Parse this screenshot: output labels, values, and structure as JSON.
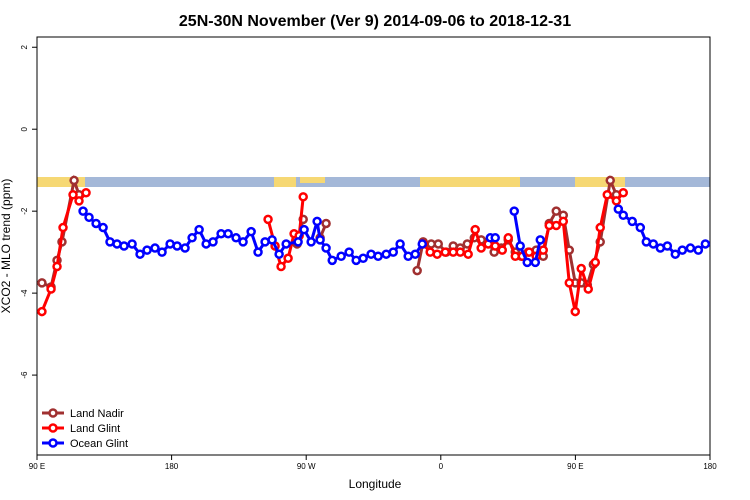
{
  "chart_data": {
    "type": "line",
    "title": "25N-30N November (Ver 9)   2014-09-06 to 2018-12-31",
    "x_label": "Longitude",
    "y_label": "XCO2 - MLO trend (ppm)",
    "xlim": [
      90,
      540
    ],
    "ylim": [
      -7.95,
      2.25
    ],
    "xticks": [
      {
        "value": 90,
        "label": "90 E"
      },
      180,
      {
        "value": 270,
        "label": "90 W"
      },
      {
        "value": 360,
        "label": "0"
      },
      {
        "value": 450,
        "label": "90 E"
      },
      {
        "value": 540,
        "label": "180"
      }
    ],
    "yticks": [
      -6,
      -4,
      -2,
      0,
      2
    ],
    "legend": "bottom-left",
    "series": [
      {
        "name": "Land Nadir",
        "color": "#a03030",
        "x": [
          93.3,
          99.4,
          103.4,
          106.7,
          114.8,
          118.1,
          null,
          263.9,
          268,
          null,
          279.3,
          283.3,
          null,
          344.2,
          348.2,
          353.6,
          358.3,
          363.6,
          368.3,
          373,
          377.7,
          382.4,
          387,
          391.7,
          395.7,
          400.4,
          405.1,
          409.8,
          413.8,
          418.5,
          423.8,
          428.5,
          432.5,
          437.2,
          441.9,
          445.9,
          449.9,
          453.9,
          458,
          462,
          466.6,
          473.3,
          477.4
        ],
        "values": [
          -3.75,
          -3.85,
          -3.2,
          -2.75,
          -1.25,
          -1.6,
          null,
          -2.8,
          -2.2,
          null,
          -2.65,
          -2.3,
          null,
          -3.45,
          -2.75,
          -2.8,
          -2.8,
          -3.0,
          -2.85,
          -2.9,
          -2.8,
          -2.65,
          -2.7,
          -2.75,
          -3.0,
          -2.9,
          -2.7,
          -3.0,
          -3.1,
          -3.0,
          -2.95,
          -3.1,
          -2.3,
          -2.0,
          -2.1,
          -2.95,
          -3.75,
          -3.75,
          -3.8,
          -3.3,
          -2.75,
          -1.25,
          -1.6
        ]
      },
      {
        "name": "Land Glint",
        "color": "#ff0000",
        "x": [
          93.3,
          99.4,
          103.4,
          107.4,
          114.1,
          118.1,
          122.8,
          null,
          244.5,
          249.2,
          253.2,
          257.9,
          261.9,
          265.3,
          268,
          null,
          348.2,
          352.9,
          357.6,
          363,
          368.3,
          373,
          378.3,
          383,
          387,
          391.7,
          396.4,
          401.1,
          405.1,
          409.8,
          414.5,
          419.1,
          423.8,
          428.5,
          432.5,
          437.2,
          441.9,
          445.9,
          449.9,
          453.9,
          458.6,
          463.3,
          466.6,
          471.3,
          477.4,
          482
        ],
        "values": [
          -4.45,
          -3.9,
          -3.35,
          -2.4,
          -1.6,
          -1.75,
          -1.55,
          null,
          -2.2,
          -2.85,
          -3.35,
          -3.15,
          -2.55,
          -2.6,
          -1.65,
          null,
          -2.8,
          -3.0,
          -3.05,
          -3.0,
          -3.0,
          -3.0,
          -3.05,
          -2.45,
          -2.9,
          -2.8,
          -2.85,
          -2.95,
          -2.65,
          -3.1,
          -3.1,
          -3.0,
          -3.1,
          -2.95,
          -2.35,
          -2.35,
          -2.25,
          -3.75,
          -4.45,
          -3.4,
          -3.9,
          -3.25,
          -2.4,
          -1.6,
          -1.75,
          -1.55
        ]
      },
      {
        "name": "Ocean Glint",
        "color": "#0000ff",
        "x": [
          120.8,
          124.8,
          129.5,
          134.2,
          138.8,
          143.5,
          148.2,
          153.6,
          158.9,
          163.6,
          168.9,
          173.6,
          179.0,
          183.7,
          189.0,
          193.7,
          198.4,
          203.1,
          207.7,
          213.1,
          217.8,
          223.1,
          227.8,
          233.2,
          237.8,
          242.5,
          247.2,
          251.9,
          256.6,
          264.6,
          268.6,
          273.3,
          277.3,
          279.3,
          283.3,
          287.4,
          293.4,
          298.7,
          303.4,
          308.1,
          313.4,
          318.1,
          323.5,
          328.2,
          332.8,
          338.2,
          342.9,
          347.6,
          null,
          393.1,
          396.4,
          null,
          409.1,
          413.1,
          417.8,
          423.2,
          426.5,
          null,
          478.7,
          482,
          488,
          493.4,
          497.4,
          502.1,
          506.8,
          511.5,
          516.8,
          521.5,
          526.9,
          532.2,
          536.9
        ],
        "values": [
          -2.0,
          -2.15,
          -2.3,
          -2.4,
          -2.75,
          -2.8,
          -2.85,
          -2.8,
          -3.05,
          -2.95,
          -2.9,
          -3.0,
          -2.8,
          -2.85,
          -2.9,
          -2.65,
          -2.45,
          -2.8,
          -2.75,
          -2.55,
          -2.55,
          -2.65,
          -2.75,
          -2.5,
          -3.0,
          -2.75,
          -2.7,
          -3.05,
          -2.8,
          -2.75,
          -2.45,
          -2.75,
          -2.25,
          -2.7,
          -2.9,
          -3.2,
          -3.1,
          -3.0,
          -3.2,
          -3.15,
          -3.05,
          -3.1,
          -3.05,
          -3.0,
          -2.8,
          -3.1,
          -3.05,
          -2.8,
          null,
          -2.65,
          -2.65,
          null,
          -2.0,
          -2.85,
          -3.25,
          -3.25,
          -2.7,
          null,
          -1.95,
          -2.1,
          -2.25,
          -2.4,
          -2.75,
          -2.8,
          -2.9,
          -2.85,
          -3.05,
          -2.95,
          -2.9,
          -2.95,
          -2.8
        ]
      }
    ]
  }
}
